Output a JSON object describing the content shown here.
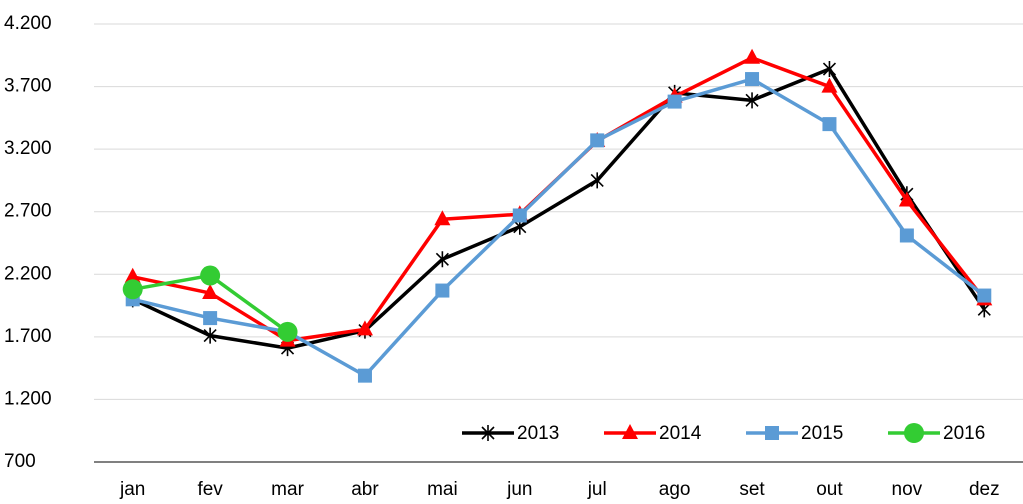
{
  "chart_data": {
    "type": "line",
    "categories": [
      "jan",
      "fev",
      "mar",
      "abr",
      "mai",
      "jun",
      "jul",
      "ago",
      "set",
      "out",
      "nov",
      "dez"
    ],
    "series": [
      {
        "name": "2013",
        "color": "#000000",
        "marker": "asterisk",
        "values": [
          2000,
          1710,
          1610,
          1750,
          2320,
          2580,
          2950,
          3650,
          3590,
          3840,
          2840,
          1920
        ]
      },
      {
        "name": "2014",
        "color": "#ff0000",
        "marker": "triangle",
        "values": [
          2180,
          2050,
          1670,
          1760,
          2640,
          2680,
          3265,
          3620,
          3930,
          3700,
          2790,
          2000
        ]
      },
      {
        "name": "2015",
        "color": "#5b9bd5",
        "marker": "square",
        "values": [
          2000,
          1850,
          1740,
          1390,
          2070,
          2670,
          3270,
          3580,
          3760,
          3400,
          2510,
          2030
        ]
      },
      {
        "name": "2016",
        "color": "#33cc33",
        "marker": "circle",
        "values": [
          2080,
          2190,
          1740,
          null,
          null,
          null,
          null,
          null,
          null,
          null,
          null,
          null
        ]
      }
    ],
    "ylim": [
      700,
      4200
    ],
    "yticks": [
      700,
      {
        "value": 1200,
        "label": "1.200"
      },
      {
        "value": 1700,
        "label": "1.700"
      },
      {
        "value": 2200,
        "label": "2.200"
      },
      {
        "value": 2700,
        "label": "2.700"
      },
      {
        "value": 3200,
        "label": "3.200"
      },
      {
        "value": 3700,
        "label": "3.700"
      },
      {
        "value": 4200,
        "label": "4.200"
      }
    ],
    "grid": true
  }
}
